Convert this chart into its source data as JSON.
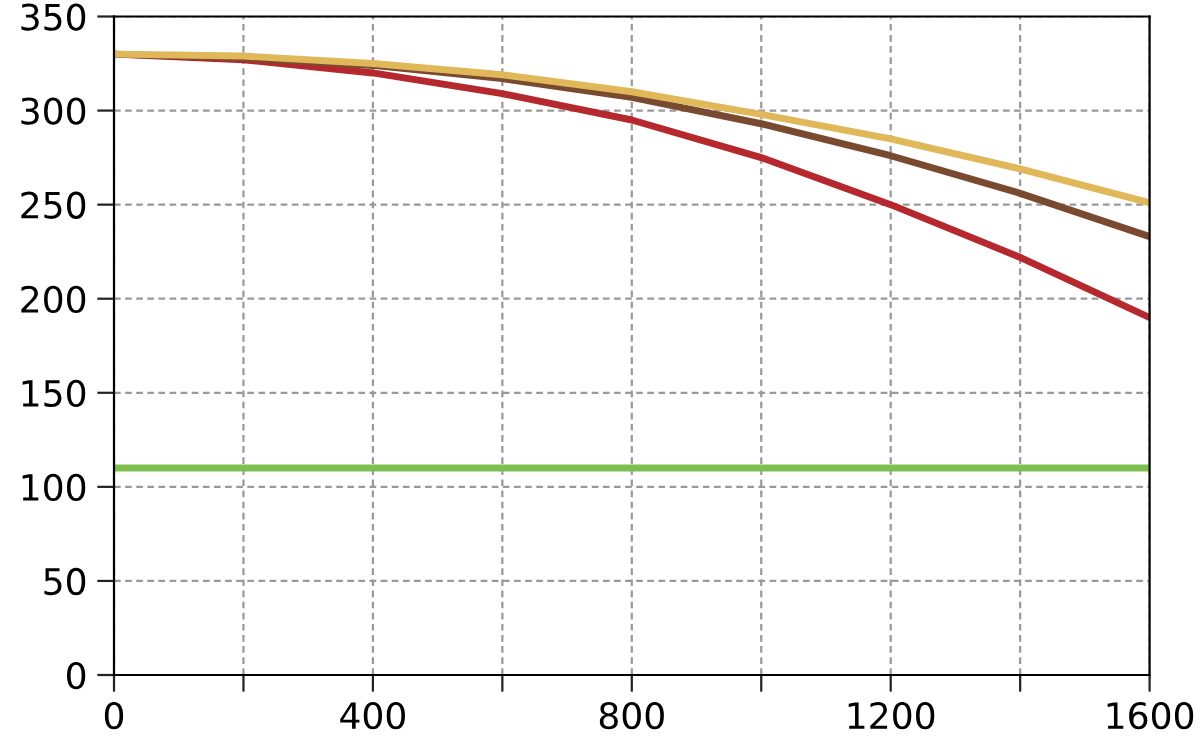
{
  "chart_data": {
    "type": "line",
    "x": [
      0,
      200,
      400,
      600,
      800,
      1000,
      1200,
      1400,
      1600
    ],
    "series": [
      {
        "color": "#7cbf4e",
        "values": [
          110,
          110,
          110,
          110,
          110,
          110,
          110,
          110,
          110
        ]
      },
      {
        "color": "#b5282e",
        "values": [
          330,
          327,
          320,
          309,
          295,
          275,
          250,
          222,
          190
        ]
      },
      {
        "color": "#7a4a30",
        "values": [
          330,
          328,
          324,
          317,
          307,
          293,
          276,
          256,
          233
        ]
      },
      {
        "color": "#e0b85a",
        "values": [
          330,
          329,
          325,
          319,
          310,
          298,
          285,
          269,
          251
        ]
      }
    ],
    "xlim": [
      0,
      1600
    ],
    "ylim": [
      0,
      350
    ],
    "xticks": [
      0,
      {
        "value": 200,
        "label": null
      },
      400,
      {
        "value": 600,
        "label": null
      },
      800,
      {
        "value": 1000,
        "label": null
      },
      1200,
      {
        "value": 1400,
        "label": null
      },
      1600
    ],
    "yticks": [
      0,
      50,
      100,
      150,
      200,
      250,
      300,
      350
    ],
    "grid": true,
    "line_style": "solid",
    "marker": "none"
  }
}
